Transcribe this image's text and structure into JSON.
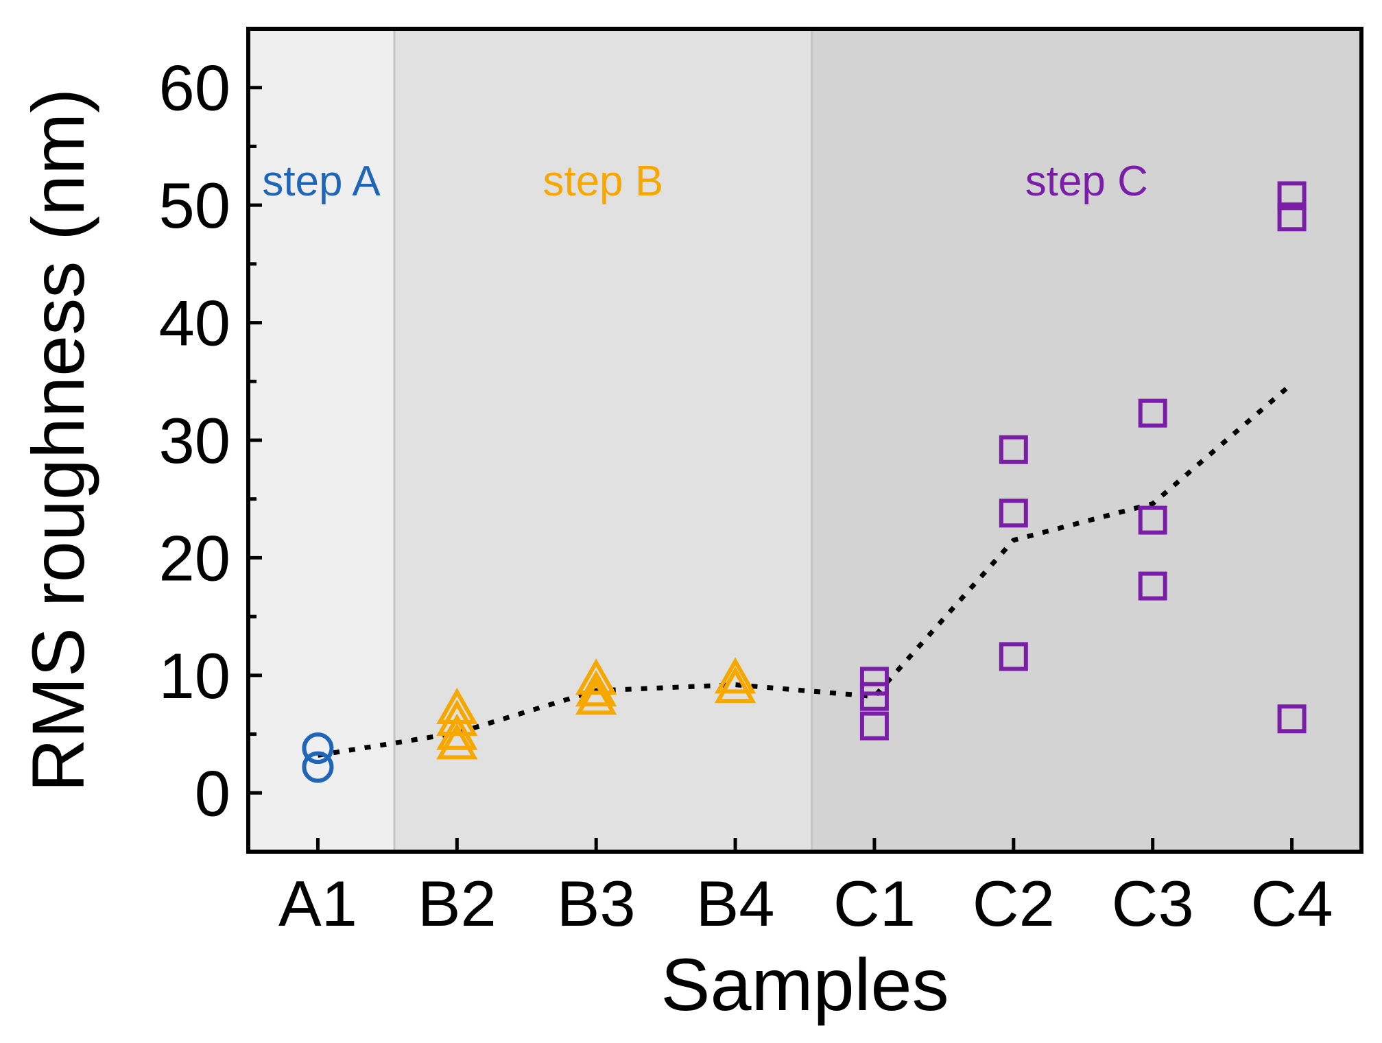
{
  "chart_data": {
    "type": "scatter",
    "xlabel": "Samples",
    "ylabel": "RMS roughness (nm)",
    "categories": [
      "A1",
      "B2",
      "B3",
      "B4",
      "C1",
      "C2",
      "C3",
      "C4"
    ],
    "ylim": [
      -5,
      65
    ],
    "yticks": [
      0,
      10,
      20,
      30,
      40,
      50,
      60
    ],
    "grid": false,
    "regions": [
      {
        "label": "step A",
        "from": -0.5,
        "to": 0.55,
        "fill": "#efefef",
        "text_color": "#1f65b8"
      },
      {
        "label": "step B",
        "from": 0.55,
        "to": 3.55,
        "fill": "#e1e1e1",
        "text_color": "#f6a800"
      },
      {
        "label": "step C",
        "from": 3.55,
        "to": 7.5,
        "fill": "#d3d3d3",
        "text_color": "#7a1ea8"
      }
    ],
    "series": [
      {
        "marker": "circle",
        "color": "#1f65b8",
        "points": [
          [
            0,
            3.8
          ],
          [
            0,
            2.2
          ]
        ]
      },
      {
        "marker": "triangle",
        "color": "#f6a800",
        "points": [
          [
            1,
            7.0
          ],
          [
            1,
            6.0
          ],
          [
            1,
            4.8
          ],
          [
            1,
            4.0
          ],
          [
            2,
            9.5
          ],
          [
            2,
            8.5
          ],
          [
            2,
            7.8
          ],
          [
            3,
            9.6
          ],
          [
            3,
            8.8
          ]
        ]
      },
      {
        "marker": "square",
        "color": "#7a1ea8",
        "points": [
          [
            4,
            9.5
          ],
          [
            4,
            8.2
          ],
          [
            4,
            5.7
          ],
          [
            5,
            29.2
          ],
          [
            5,
            23.8
          ],
          [
            5,
            11.6
          ],
          [
            6,
            32.3
          ],
          [
            6,
            23.2
          ],
          [
            6,
            17.6
          ],
          [
            7,
            50.8
          ],
          [
            7,
            49.0
          ],
          [
            7,
            6.3
          ]
        ]
      }
    ],
    "trend": {
      "style": "dotted",
      "color": "#000000",
      "points": [
        [
          0,
          3.2
        ],
        [
          1,
          5.1
        ],
        [
          2,
          8.7
        ],
        [
          3,
          9.2
        ],
        [
          4,
          8.2
        ],
        [
          5,
          21.5
        ],
        [
          6,
          24.6
        ],
        [
          7,
          34.8
        ]
      ]
    }
  }
}
